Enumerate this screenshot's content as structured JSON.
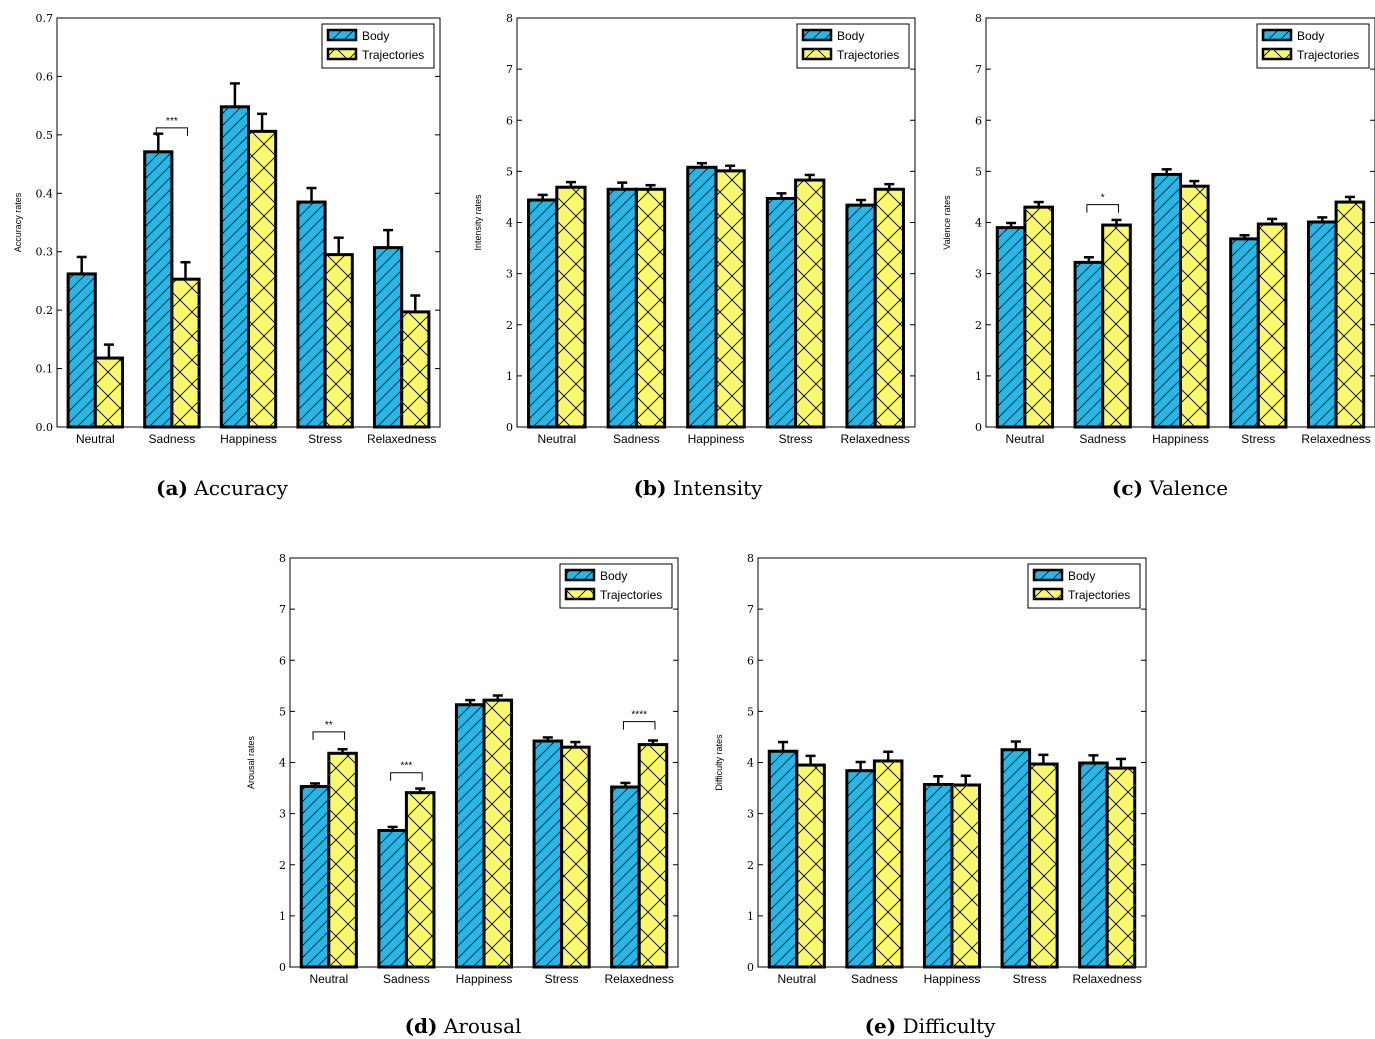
{
  "colors": {
    "body": "#29b6e6",
    "trajectories": "#f8f76e",
    "edge": "#000000"
  },
  "chart_data": [
    {
      "type": "bar",
      "caption_prefix": "(a)",
      "caption_text": "Accuracy",
      "ylabel": "Accuracy rates",
      "ylim": [
        0,
        0.7
      ],
      "yticks": [
        "0.0",
        "0.1",
        "0.2",
        "0.3",
        "0.4",
        "0.5",
        "0.6",
        "0.7"
      ],
      "categories": [
        "Neutral",
        "Sadness",
        "Happiness",
        "Stress",
        "Relaxedness"
      ],
      "series": [
        {
          "name": "Body",
          "values": [
            0.262,
            0.471,
            0.548,
            0.385,
            0.307
          ],
          "errors": [
            0.029,
            0.031,
            0.04,
            0.024,
            0.03
          ],
          "hatch": "diagonal"
        },
        {
          "name": "Trajectories",
          "values": [
            0.118,
            0.253,
            0.506,
            0.295,
            0.197
          ],
          "errors": [
            0.023,
            0.029,
            0.03,
            0.029,
            0.028
          ],
          "hatch": "cross"
        }
      ],
      "significance": [
        {
          "category": "Sadness",
          "label": "***",
          "y": 0.512
        }
      ],
      "legend": "top-right"
    },
    {
      "type": "bar",
      "caption_prefix": "(b)",
      "caption_text": "Intensity",
      "ylabel": "Intensity rates",
      "ylim": [
        0,
        8
      ],
      "yticks": [
        "0",
        "1",
        "2",
        "3",
        "4",
        "5",
        "6",
        "7",
        "8"
      ],
      "categories": [
        "Neutral",
        "Sadness",
        "Happiness",
        "Stress",
        "Relaxedness"
      ],
      "series": [
        {
          "name": "Body",
          "values": [
            4.44,
            4.65,
            5.08,
            4.47,
            4.34
          ],
          "errors": [
            0.1,
            0.13,
            0.08,
            0.1,
            0.1
          ],
          "hatch": "diagonal"
        },
        {
          "name": "Trajectories",
          "values": [
            4.69,
            4.65,
            5.01,
            4.83,
            4.65
          ],
          "errors": [
            0.1,
            0.08,
            0.1,
            0.1,
            0.1
          ],
          "hatch": "cross"
        }
      ],
      "significance": [],
      "legend": "top-right"
    },
    {
      "type": "bar",
      "caption_prefix": "(c)",
      "caption_text": "Valence",
      "ylabel": "Valence rates",
      "ylim": [
        0,
        8
      ],
      "yticks": [
        "0",
        "1",
        "2",
        "3",
        "4",
        "5",
        "6",
        "7",
        "8"
      ],
      "categories": [
        "Neutral",
        "Sadness",
        "Happiness",
        "Stress",
        "Relaxedness"
      ],
      "series": [
        {
          "name": "Body",
          "values": [
            3.9,
            3.22,
            4.94,
            3.68,
            4.01
          ],
          "errors": [
            0.09,
            0.1,
            0.1,
            0.07,
            0.09
          ],
          "hatch": "diagonal"
        },
        {
          "name": "Trajectories",
          "values": [
            4.3,
            3.95,
            4.71,
            3.97,
            4.4
          ],
          "errors": [
            0.1,
            0.1,
            0.1,
            0.1,
            0.1
          ],
          "hatch": "cross"
        }
      ],
      "significance": [
        {
          "category": "Sadness",
          "label": "*",
          "y": 4.35
        }
      ],
      "legend": "top-right"
    },
    {
      "type": "bar",
      "caption_prefix": "(d)",
      "caption_text": "Arousal",
      "ylabel": "Arousal rates",
      "ylim": [
        0,
        8
      ],
      "yticks": [
        "0",
        "1",
        "2",
        "3",
        "4",
        "5",
        "6",
        "7",
        "8"
      ],
      "categories": [
        "Neutral",
        "Sadness",
        "Happiness",
        "Stress",
        "Relaxedness"
      ],
      "series": [
        {
          "name": "Body",
          "values": [
            3.53,
            2.67,
            5.13,
            4.42,
            3.52
          ],
          "errors": [
            0.06,
            0.07,
            0.09,
            0.07,
            0.08
          ],
          "hatch": "diagonal"
        },
        {
          "name": "Trajectories",
          "values": [
            4.18,
            3.41,
            5.22,
            4.3,
            4.35
          ],
          "errors": [
            0.08,
            0.08,
            0.09,
            0.1,
            0.08
          ],
          "hatch": "cross"
        }
      ],
      "significance": [
        {
          "category": "Neutral",
          "label": "**",
          "y": 4.6
        },
        {
          "category": "Sadness",
          "label": "***",
          "y": 3.8
        },
        {
          "category": "Relaxedness",
          "label": "****",
          "y": 4.8
        }
      ],
      "legend": "top-right"
    },
    {
      "type": "bar",
      "caption_prefix": "(e)",
      "caption_text": "Difficulty",
      "ylabel": "Difficulty rates",
      "ylim": [
        0,
        8
      ],
      "yticks": [
        "0",
        "1",
        "2",
        "3",
        "4",
        "5",
        "6",
        "7",
        "8"
      ],
      "categories": [
        "Neutral",
        "Sadness",
        "Happiness",
        "Stress",
        "Relaxedness"
      ],
      "series": [
        {
          "name": "Body",
          "values": [
            4.22,
            3.84,
            3.57,
            4.25,
            3.99
          ],
          "errors": [
            0.18,
            0.17,
            0.16,
            0.16,
            0.15
          ],
          "hatch": "diagonal"
        },
        {
          "name": "Trajectories",
          "values": [
            3.95,
            4.03,
            3.56,
            3.97,
            3.89
          ],
          "errors": [
            0.18,
            0.18,
            0.18,
            0.18,
            0.18
          ],
          "hatch": "cross"
        }
      ],
      "significance": [],
      "legend": "top-right"
    }
  ]
}
